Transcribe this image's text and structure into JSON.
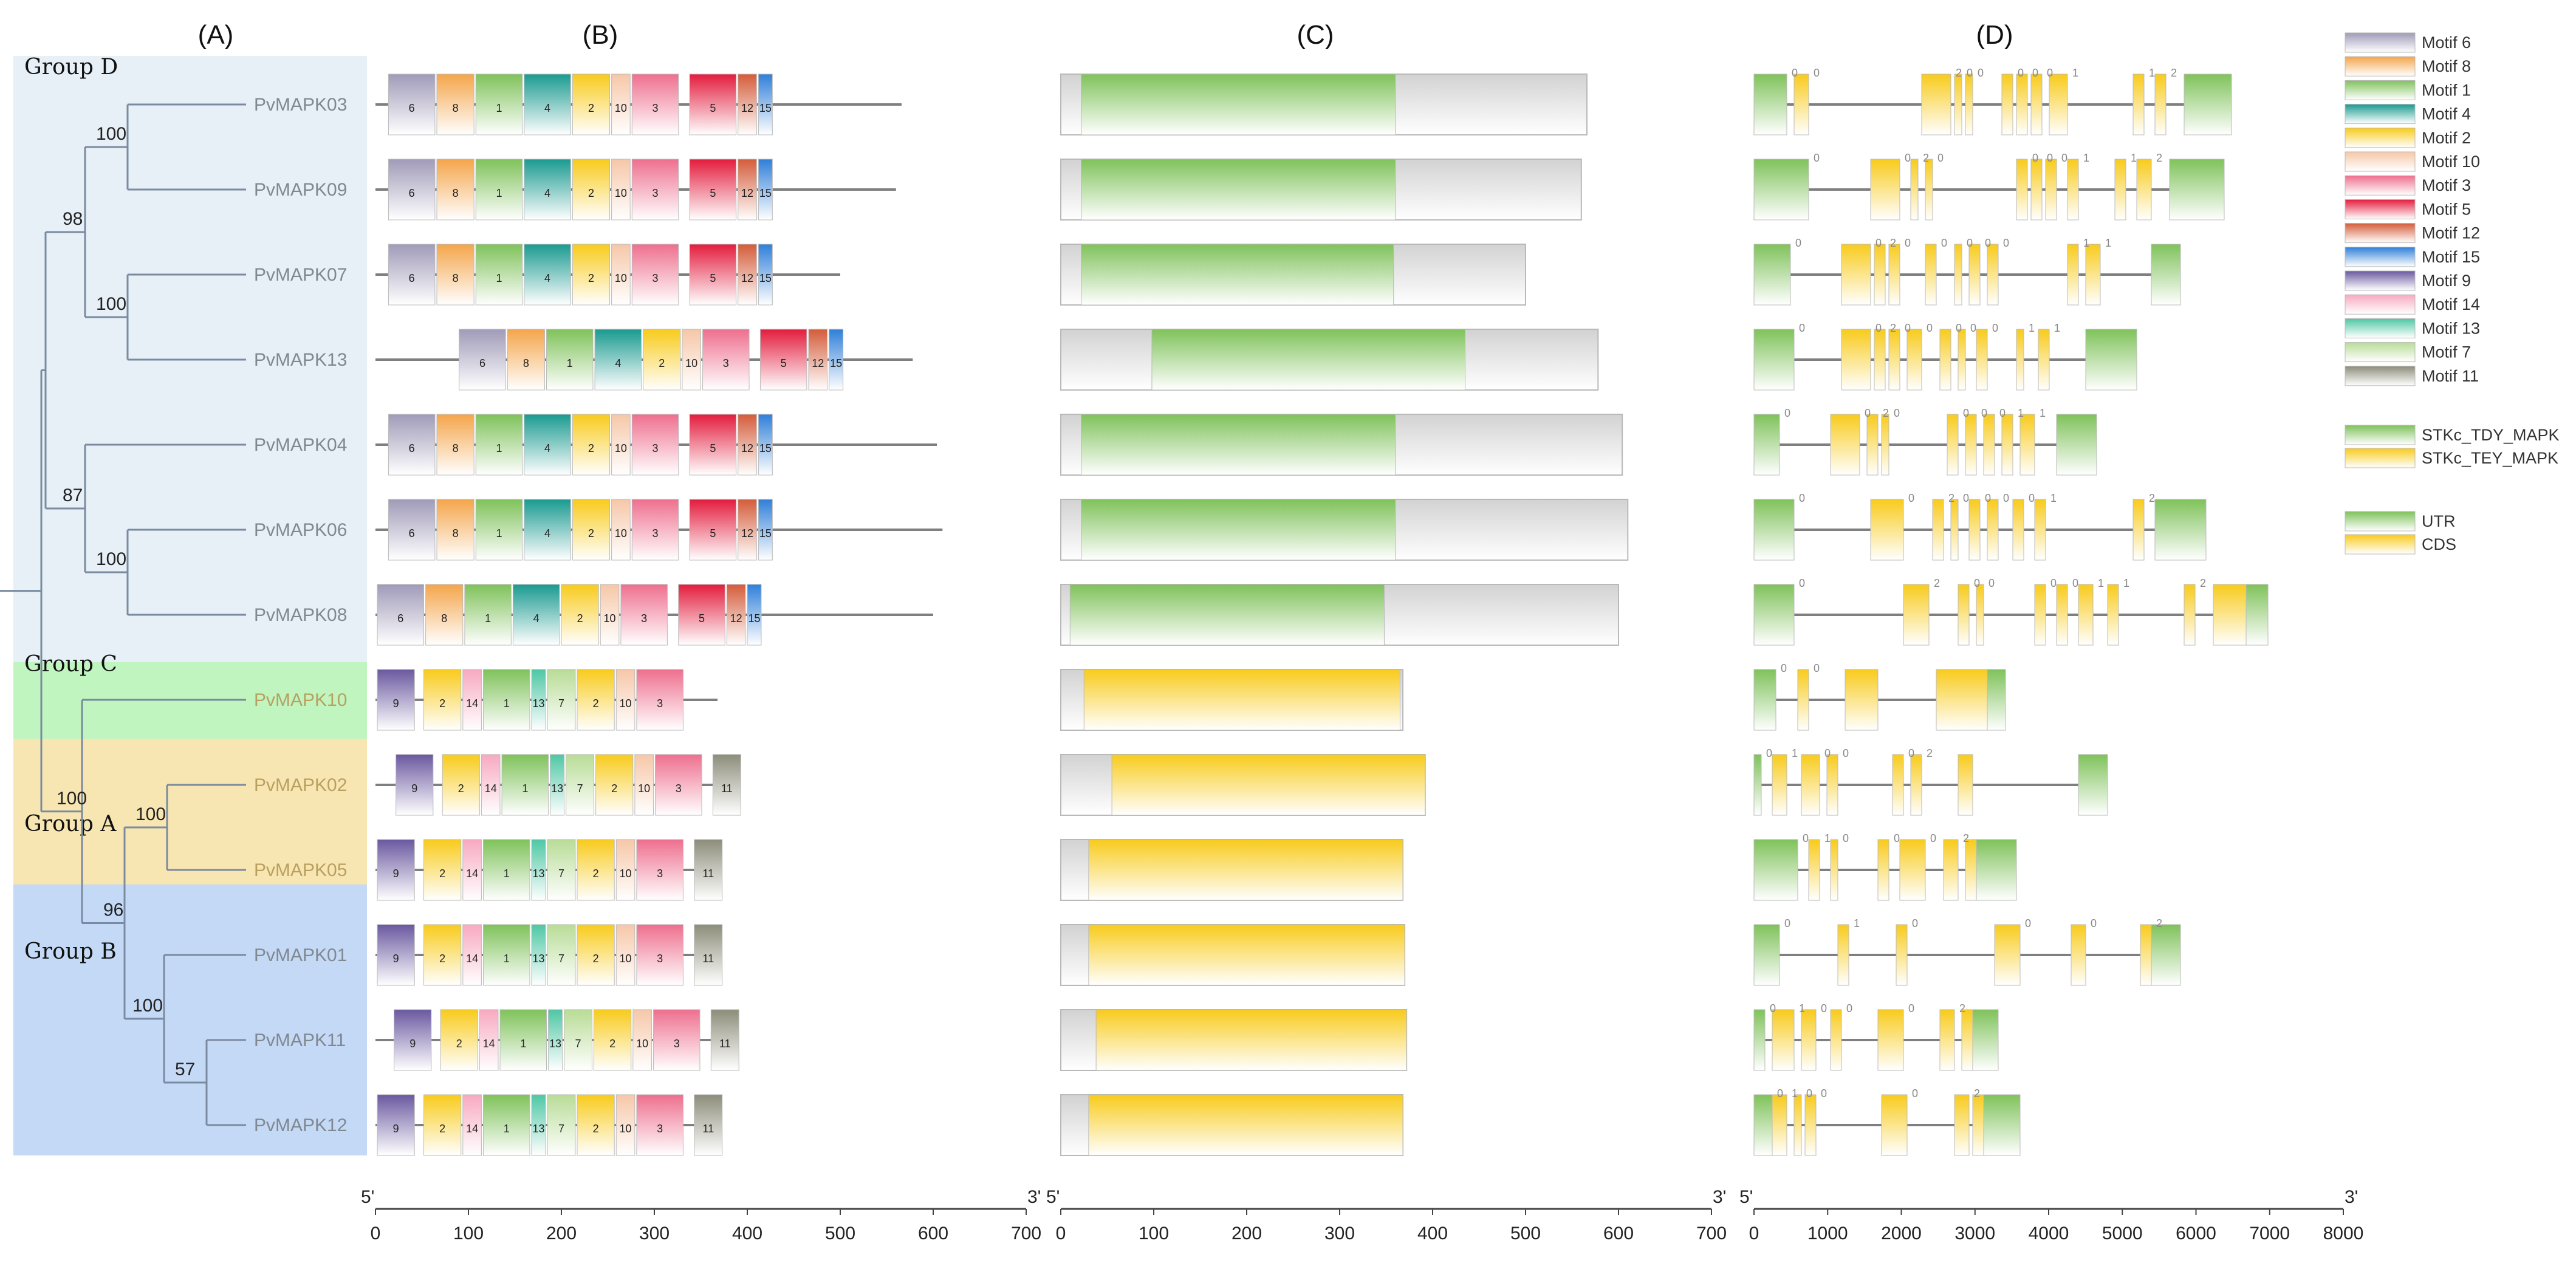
{
  "panels": [
    "(A)",
    "(B)",
    "(C)",
    "(D)"
  ],
  "groups": [
    {
      "label": "Group D",
      "color": "#e6f0f6"
    },
    {
      "label": "Group C",
      "color": "#c0f5c0"
    },
    {
      "label": "Group A",
      "color": "#f8e6b2"
    },
    {
      "label": "Group B",
      "color": "#c4d9f5"
    }
  ],
  "genes": [
    {
      "name": "PvMAPK03",
      "group": "D",
      "len": 566,
      "motifs": [
        "6",
        "8",
        "1",
        "4",
        "2",
        "10",
        "3",
        "5",
        "12",
        "15"
      ],
      "start": 14,
      "tdy": [
        22,
        360
      ],
      "dtotal": 6550,
      "exons": [
        [
          0,
          450
        ],
        [
          550,
          750
        ],
        [
          2300,
          2700
        ],
        [
          2750,
          2850
        ],
        [
          2900,
          3000
        ],
        [
          3400,
          3550
        ],
        [
          3600,
          3750
        ],
        [
          3800,
          3950
        ],
        [
          4050,
          4300
        ],
        [
          5200,
          5350
        ],
        [
          5500,
          5650
        ],
        [
          5900,
          6550
        ]
      ],
      "phase": [
        "0",
        "0",
        "2",
        "0",
        "0",
        "0",
        "0",
        "0",
        "1",
        "1",
        "2"
      ]
    },
    {
      "name": "PvMAPK09",
      "group": "D",
      "len": 560,
      "motifs": [
        "6",
        "8",
        "1",
        "4",
        "2",
        "10",
        "3",
        "5",
        "12",
        "15"
      ],
      "start": 14,
      "tdy": [
        22,
        360
      ],
      "dtotal": 6450,
      "exons": [
        [
          0,
          750
        ],
        [
          1600,
          2000
        ],
        [
          2150,
          2250
        ],
        [
          2350,
          2450
        ],
        [
          3600,
          3750
        ],
        [
          3800,
          3950
        ],
        [
          4000,
          4150
        ],
        [
          4300,
          4450
        ],
        [
          4950,
          5100
        ],
        [
          5250,
          5450
        ],
        [
          5700,
          6450
        ]
      ],
      "phase": [
        "0",
        "0",
        "2",
        "0",
        "0",
        "0",
        "0",
        "1",
        "1",
        "2"
      ]
    },
    {
      "name": "PvMAPK07",
      "group": "D",
      "len": 500,
      "motifs": [
        "6",
        "8",
        "1",
        "4",
        "2",
        "10",
        "3",
        "5",
        "12",
        "15"
      ],
      "start": 14,
      "tdy": [
        22,
        358
      ],
      "dtotal": 5850,
      "exons": [
        [
          0,
          500
        ],
        [
          1200,
          1600
        ],
        [
          1650,
          1800
        ],
        [
          1850,
          2000
        ],
        [
          2350,
          2500
        ],
        [
          2750,
          2850
        ],
        [
          2950,
          3100
        ],
        [
          3200,
          3350
        ],
        [
          4300,
          4450
        ],
        [
          4550,
          4750
        ],
        [
          5450,
          5850
        ]
      ],
      "phase": [
        "0",
        "0",
        "2",
        "0",
        "0",
        "0",
        "0",
        "0",
        "1",
        "1",
        "0"
      ]
    },
    {
      "name": "PvMAPK13",
      "group": "D",
      "len": 578,
      "motifs": [
        "6",
        "8",
        "1",
        "4",
        "2",
        "10",
        "3",
        "5",
        "12",
        "15"
      ],
      "start": 90,
      "tdy": [
        98,
        435
      ],
      "dtotal": 5250,
      "exons": [
        [
          0,
          550
        ],
        [
          1200,
          1600
        ],
        [
          1650,
          1800
        ],
        [
          1850,
          2000
        ],
        [
          2100,
          2300
        ],
        [
          2550,
          2700
        ],
        [
          2800,
          2900
        ],
        [
          3050,
          3200
        ],
        [
          3600,
          3700
        ],
        [
          3900,
          4050
        ],
        [
          4550,
          5250
        ]
      ],
      "phase": [
        "0",
        "0",
        "2",
        "0",
        "0",
        "0",
        "0",
        "0",
        "1",
        "1",
        "0"
      ]
    },
    {
      "name": "PvMAPK04",
      "group": "D",
      "len": 604,
      "motifs": [
        "6",
        "8",
        "1",
        "4",
        "2",
        "10",
        "3",
        "5",
        "12",
        "15"
      ],
      "start": 14,
      "tdy": [
        22,
        360
      ],
      "dtotal": 4700,
      "exons": [
        [
          0,
          350
        ],
        [
          1050,
          1450
        ],
        [
          1550,
          1700
        ],
        [
          1750,
          1850
        ],
        [
          2650,
          2800
        ],
        [
          2900,
          3050
        ],
        [
          3150,
          3300
        ],
        [
          3400,
          3550
        ],
        [
          3650,
          3850
        ],
        [
          4150,
          4700
        ]
      ],
      "phase": [
        "0",
        "0",
        "2",
        "0",
        "0",
        "0",
        "0",
        "1",
        "1"
      ]
    },
    {
      "name": "PvMAPK06",
      "group": "D",
      "len": 610,
      "motifs": [
        "6",
        "8",
        "1",
        "4",
        "2",
        "10",
        "3",
        "5",
        "12",
        "15"
      ],
      "start": 14,
      "tdy": [
        22,
        360
      ],
      "dtotal": 6200,
      "exons": [
        [
          0,
          550
        ],
        [
          1600,
          2050
        ],
        [
          2450,
          2600
        ],
        [
          2700,
          2800
        ],
        [
          2950,
          3100
        ],
        [
          3200,
          3350
        ],
        [
          3550,
          3700
        ],
        [
          3850,
          4000
        ],
        [
          5200,
          5350
        ],
        [
          5500,
          6200
        ]
      ],
      "phase": [
        "0",
        "0",
        "2",
        "0",
        "0",
        "0",
        "0",
        "1",
        "2"
      ]
    },
    {
      "name": "PvMAPK08",
      "group": "D",
      "len": 600,
      "motifs": [
        "6",
        "8",
        "1",
        "4",
        "2",
        "10",
        "3",
        "5",
        "12",
        "15"
      ],
      "start": 2,
      "tdy": [
        10,
        348
      ],
      "dtotal": 7050,
      "exons": [
        [
          0,
          550
        ],
        [
          2050,
          2400
        ],
        [
          2800,
          2950
        ],
        [
          3050,
          3150
        ],
        [
          3850,
          4000
        ],
        [
          4150,
          4300
        ],
        [
          4450,
          4650
        ],
        [
          4850,
          5000
        ],
        [
          5900,
          6050
        ],
        [
          6300,
          6750
        ],
        [
          6750,
          7050
        ]
      ],
      "phase": [
        "0",
        "2",
        "0",
        "0",
        "0",
        "0",
        "1",
        "1",
        "2"
      ]
    },
    {
      "name": "PvMAPK10",
      "group": "C",
      "len": 368,
      "motifs": [
        "9",
        "2",
        "14",
        "1",
        "13",
        "7",
        "2",
        "10",
        "3"
      ],
      "start": 2,
      "tey": [
        25,
        365
      ],
      "dtotal": 3450,
      "exons": [
        [
          0,
          300
        ],
        [
          600,
          750
        ],
        [
          1250,
          1700
        ],
        [
          2500,
          3200
        ],
        [
          3200,
          3450
        ]
      ],
      "phase": [
        "0",
        "0"
      ]
    },
    {
      "name": "PvMAPK02",
      "group": "A",
      "len": 392,
      "motifs": [
        "9",
        "2",
        "14",
        "1",
        "13",
        "7",
        "2",
        "10",
        "3",
        "11"
      ],
      "start": 22,
      "tey": [
        55,
        392
      ],
      "dtotal": 4850,
      "exons": [
        [
          0,
          100
        ],
        [
          250,
          450
        ],
        [
          650,
          900
        ],
        [
          1000,
          1150
        ],
        [
          1900,
          2050
        ],
        [
          2150,
          2300
        ],
        [
          2800,
          3000
        ],
        [
          4450,
          4850
        ]
      ],
      "phase": [
        "0",
        "1",
        "0",
        "0",
        "0",
        "2"
      ]
    },
    {
      "name": "PvMAPK05",
      "group": "A",
      "len": 368,
      "motifs": [
        "9",
        "2",
        "14",
        "1",
        "13",
        "7",
        "2",
        "10",
        "3",
        "11"
      ],
      "start": 2,
      "tey": [
        30,
        368
      ],
      "dtotal": 3600,
      "exons": [
        [
          0,
          600
        ],
        [
          750,
          900
        ],
        [
          1050,
          1150
        ],
        [
          1700,
          1850
        ],
        [
          2000,
          2350
        ],
        [
          2600,
          2800
        ],
        [
          2900,
          3050
        ],
        [
          3050,
          3600
        ]
      ],
      "phase": [
        "0",
        "1",
        "0",
        "0",
        "0",
        "2"
      ]
    },
    {
      "name": "PvMAPK01",
      "group": "B",
      "len": 370,
      "motifs": [
        "9",
        "2",
        "14",
        "1",
        "13",
        "7",
        "2",
        "10",
        "3",
        "11"
      ],
      "start": 2,
      "tey": [
        30,
        370
      ],
      "dtotal": 5850,
      "exons": [
        [
          0,
          350
        ],
        [
          1150,
          1300
        ],
        [
          1950,
          2100
        ],
        [
          3300,
          3650
        ],
        [
          4350,
          4550
        ],
        [
          5300,
          5450
        ],
        [
          5450,
          5850
        ]
      ],
      "phase": [
        "0",
        "1",
        "0",
        "0",
        "0",
        "2"
      ]
    },
    {
      "name": "PvMAPK11",
      "group": "B",
      "len": 372,
      "motifs": [
        "9",
        "2",
        "14",
        "1",
        "13",
        "7",
        "2",
        "10",
        "3",
        "11"
      ],
      "start": 20,
      "tey": [
        38,
        372
      ],
      "dtotal": 3350,
      "exons": [
        [
          0,
          150
        ],
        [
          250,
          550
        ],
        [
          650,
          850
        ],
        [
          1050,
          1200
        ],
        [
          1700,
          2050
        ],
        [
          2550,
          2750
        ],
        [
          2850,
          3000
        ],
        [
          3000,
          3350
        ]
      ],
      "phase": [
        "0",
        "1",
        "0",
        "0",
        "0",
        "2"
      ]
    },
    {
      "name": "PvMAPK12",
      "group": "B",
      "len": 368,
      "motifs": [
        "9",
        "2",
        "14",
        "1",
        "13",
        "7",
        "2",
        "10",
        "3",
        "11"
      ],
      "start": 2,
      "tey": [
        30,
        368
      ],
      "dtotal": 3650,
      "exons": [
        [
          0,
          250
        ],
        [
          250,
          450
        ],
        [
          550,
          650
        ],
        [
          700,
          850
        ],
        [
          1750,
          2100
        ],
        [
          2750,
          2950
        ],
        [
          3000,
          3150
        ],
        [
          3150,
          3650
        ]
      ],
      "phase": [
        "0",
        "1",
        "0",
        "0",
        "0",
        "2"
      ]
    }
  ],
  "bootstrap": [
    {
      "value": "100",
      "node": "03-09"
    },
    {
      "value": "98",
      "node": "D1"
    },
    {
      "value": "100",
      "node": "07-13"
    },
    {
      "value": "87",
      "node": "D2"
    },
    {
      "value": "100",
      "node": "06-08"
    },
    {
      "value": "100",
      "node": "ABC"
    },
    {
      "value": "100",
      "node": "02-05"
    },
    {
      "value": "96",
      "node": "AB"
    },
    {
      "value": "100",
      "node": "B"
    },
    {
      "value": "57",
      "node": "11-12"
    }
  ],
  "motif_legend": [
    {
      "label": "Motif 6",
      "color": "#a09ab8"
    },
    {
      "label": "Motif 8",
      "color": "#f4a54a"
    },
    {
      "label": "Motif 1",
      "color": "#7fc25a"
    },
    {
      "label": "Motif 4",
      "color": "#1a9a90"
    },
    {
      "label": "Motif 2",
      "color": "#f8cb1c"
    },
    {
      "label": "Motif 10",
      "color": "#f6c7a8"
    },
    {
      "label": "Motif 3",
      "color": "#ee6f8e"
    },
    {
      "label": "Motif 5",
      "color": "#e31c3d"
    },
    {
      "label": "Motif 12",
      "color": "#d45c3a"
    },
    {
      "label": "Motif 15",
      "color": "#2f7fd9"
    },
    {
      "label": "Motif 9",
      "color": "#6a58a0"
    },
    {
      "label": "Motif 14",
      "color": "#f7a9c0"
    },
    {
      "label": "Motif 13",
      "color": "#4ec7a4"
    },
    {
      "label": "Motif 7",
      "color": "#b8dc96"
    },
    {
      "label": "Motif 11",
      "color": "#8d8d7a"
    }
  ],
  "domain_legend": [
    {
      "label": "STKc_TDY_MAPK",
      "color": "#7fc25a"
    },
    {
      "label": "STKc_TEY_MAPK",
      "color": "#f8cb1c"
    }
  ],
  "structure_legend": [
    {
      "label": "UTR",
      "color": "#7fc25a"
    },
    {
      "label": "CDS",
      "color": "#f8cb1c"
    }
  ],
  "axes": {
    "b": {
      "start": "5'",
      "end": "3'",
      "ticks": [
        "0",
        "100",
        "200",
        "300",
        "400",
        "500",
        "600",
        "700"
      ],
      "max": 700
    },
    "c": {
      "start": "5'",
      "end": "3'",
      "ticks": [
        "0",
        "100",
        "200",
        "300",
        "400",
        "500",
        "600",
        "700"
      ],
      "max": 700
    },
    "d": {
      "start": "5'",
      "end": "3'",
      "ticks": [
        "0",
        "1000",
        "2000",
        "3000",
        "4000",
        "5000",
        "6000",
        "7000",
        "8000"
      ],
      "max": 8000
    }
  }
}
